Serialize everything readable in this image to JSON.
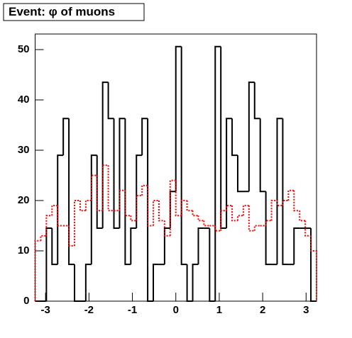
{
  "chart_data": {
    "type": "histogram",
    "title": "Event: φ of muons",
    "bins": [
      -3.24,
      -3.1104,
      -2.9808,
      -2.8512,
      -2.7216,
      -2.592,
      -2.4624,
      -2.3328,
      -2.2032,
      -2.0736,
      -1.944,
      -1.8144,
      -1.6848,
      -1.5552,
      -1.4256,
      -1.296,
      -1.1664,
      -1.0368,
      -0.9072,
      -0.7776,
      -0.648,
      -0.5184,
      -0.3888,
      -0.2592,
      -0.1296,
      0,
      0.1296,
      0.2592,
      0.3888,
      0.5184,
      0.648,
      0.7776,
      0.9072,
      1.0368,
      1.1664,
      1.296,
      1.4256,
      1.5552,
      1.6848,
      1.8144,
      1.944,
      2.0736,
      2.2032,
      2.3328,
      2.4624,
      2.592,
      2.7216,
      2.8512,
      2.9808,
      3.1104,
      3.24
    ],
    "series": [
      {
        "color": "#000000",
        "dash": "solid",
        "values": [
          0,
          0,
          14.5,
          7.3,
          29,
          36.3,
          7.3,
          0,
          0,
          7.3,
          29,
          14.5,
          43.5,
          36.3,
          14.5,
          36.3,
          7.3,
          14.5,
          29,
          36.3,
          0,
          7.3,
          7.3,
          14.5,
          21.8,
          50.6,
          7.3,
          0,
          7.3,
          14.5,
          14.5,
          0,
          50.6,
          14.5,
          36.3,
          29,
          21.8,
          21.8,
          43.5,
          36.3,
          21.8,
          7.3,
          7.3,
          36.3,
          7.3,
          7.3,
          14.5,
          14.5,
          14.5,
          0
        ]
      },
      {
        "color": "#ff0000",
        "dash": "dotted",
        "values": [
          12,
          13,
          17,
          19,
          15,
          15,
          11,
          20,
          18,
          20,
          25,
          18,
          27,
          18,
          18,
          22,
          17,
          16,
          21,
          23,
          15,
          20,
          16,
          13,
          24,
          17,
          20,
          18,
          17,
          16,
          15,
          15,
          14,
          18,
          19,
          16,
          17,
          19,
          14,
          15,
          15,
          16,
          20,
          19,
          20,
          22,
          18,
          16,
          13,
          10
        ]
      }
    ],
    "xlim": [
      -3.24,
      3.24
    ],
    "xticks": [
      -3,
      -2,
      -1,
      0,
      1,
      2,
      3
    ],
    "ylim": [
      0,
      53.1
    ],
    "yticks": [
      0,
      10,
      20,
      30,
      40,
      50
    ]
  }
}
